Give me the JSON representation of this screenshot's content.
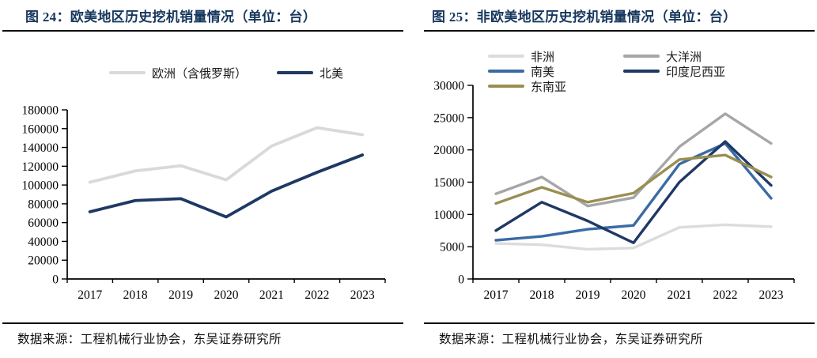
{
  "page": {
    "background": "#ffffff",
    "accent_color": "#17375E",
    "axis_color": "#000000"
  },
  "panels": [
    {
      "title": "图 24：欧美地区历史挖机销量情况（单位：台）",
      "source": "数据来源：工程机械行业协会，东吴证券研究所"
    },
    {
      "title": "图 25：非欧美地区历史挖机销量情况（单位：台）",
      "source": "数据来源：工程机械行业协会，东吴证券研究所"
    }
  ],
  "chart_data": [
    {
      "type": "line",
      "title": "图 24：欧美地区历史挖机销量情况（单位：台）",
      "unit": "台",
      "categories": [
        "2017",
        "2018",
        "2019",
        "2020",
        "2021",
        "2022",
        "2023"
      ],
      "series": [
        {
          "name": "欧洲（含俄罗斯）",
          "color": "#D9D9D9",
          "values": [
            103000,
            115000,
            120500,
            105500,
            141500,
            161000,
            153500
          ]
        },
        {
          "name": "北美",
          "color": "#1F3864",
          "values": [
            71500,
            83500,
            85500,
            66000,
            93500,
            113500,
            132000
          ]
        }
      ],
      "xlabel": "",
      "ylabel": "",
      "ylim": [
        0,
        180000
      ],
      "yticks": [
        0,
        20000,
        40000,
        60000,
        80000,
        100000,
        120000,
        140000,
        160000,
        180000
      ],
      "grid": false,
      "legend_position": "top-center-row"
    },
    {
      "type": "line",
      "title": "图 25：非欧美地区历史挖机销量情况（单位：台）",
      "unit": "台",
      "categories": [
        "2017",
        "2018",
        "2019",
        "2020",
        "2021",
        "2022",
        "2023"
      ],
      "series": [
        {
          "name": "非洲",
          "color": "#DCDCDC",
          "values": [
            5500,
            5300,
            4600,
            4800,
            8000,
            8400,
            8100
          ]
        },
        {
          "name": "大洋洲",
          "color": "#A6A6A6",
          "values": [
            13200,
            15800,
            11300,
            12600,
            20500,
            25600,
            21000
          ]
        },
        {
          "name": "南美",
          "color": "#3A6BA4",
          "values": [
            6000,
            6600,
            7700,
            8300,
            17800,
            21000,
            12500
          ]
        },
        {
          "name": "印度尼西亚",
          "color": "#1F3864",
          "values": [
            7500,
            11900,
            9000,
            5600,
            15000,
            21300,
            14500
          ]
        },
        {
          "name": "东南亚",
          "color": "#9A8F52",
          "values": [
            11700,
            14200,
            11900,
            13300,
            18500,
            19200,
            15800
          ]
        }
      ],
      "xlabel": "",
      "ylabel": "",
      "ylim": [
        0,
        30000
      ],
      "yticks": [
        0,
        5000,
        10000,
        15000,
        20000,
        25000,
        30000
      ],
      "grid": false,
      "legend_position": "top-left-two-columns"
    }
  ]
}
